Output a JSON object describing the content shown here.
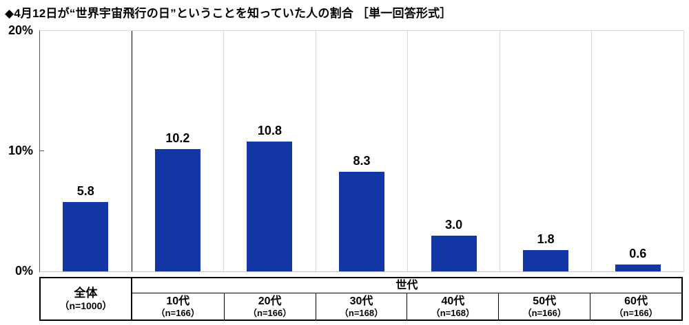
{
  "title": "◆4月12日が“世界宇宙飛行の日”ということを知っていた人の割合 ［単一回答形式］",
  "chart_data": {
    "type": "bar",
    "title": "4月12日が“世界宇宙飛行の日”ということを知っていた人の割合（単一回答形式）",
    "categories": [
      "全体",
      "10代",
      "20代",
      "30代",
      "40代",
      "50代",
      "60代"
    ],
    "values": [
      5.8,
      10.2,
      10.8,
      8.3,
      3.0,
      1.8,
      0.6
    ],
    "value_labels": [
      "5.8",
      "10.2",
      "10.8",
      "8.3",
      "3.0",
      "1.8",
      "0.6"
    ],
    "sample_sizes": [
      "（n=1000）",
      "（n=166）",
      "（n=166）",
      "（n=168）",
      "（n=168）",
      "（n=166）",
      "（n=166）"
    ],
    "group_header": "世代",
    "xlabel": "",
    "ylabel": "%",
    "ylim": [
      0,
      20
    ],
    "yticks": [
      "20%",
      "10%",
      "0%"
    ],
    "grid": "none",
    "legend": "none",
    "bar_color": "#1337a5"
  },
  "axis": {
    "y20": "20%",
    "y10": "10%",
    "y0": "0%"
  },
  "table": {
    "total": {
      "label": "全体",
      "n": "（n=1000）"
    },
    "group_header": "世代",
    "columns": [
      {
        "label": "10代",
        "n": "（n=166）"
      },
      {
        "label": "20代",
        "n": "（n=166）"
      },
      {
        "label": "30代",
        "n": "（n=168）"
      },
      {
        "label": "40代",
        "n": "（n=168）"
      },
      {
        "label": "50代",
        "n": "（n=166）"
      },
      {
        "label": "60代",
        "n": "（n=166）"
      }
    ]
  }
}
